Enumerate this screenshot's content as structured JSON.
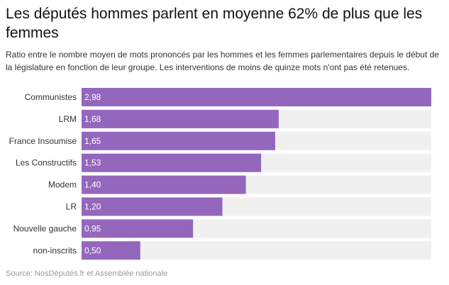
{
  "header": {
    "title": "Les députés hommes parlent en moyenne 62% de plus que les femmes",
    "subtitle": "Ratio entre le nombre moyen de mots prononcés par les hommes et les femmes parlementaires depuis le début de la législature en fonction de leur groupe. Les interventions de moins de quinze mots n'ont pas été retenues."
  },
  "footer": {
    "source": "Source: NosDéputés.fr et Assemblée nationale"
  },
  "colors": {
    "bar": "#9467bd",
    "track": "#f0f0f0",
    "value_text": "#ffffff",
    "category_text": "#333333"
  },
  "chart_data": {
    "type": "bar",
    "orientation": "horizontal",
    "title": "Les députés hommes parlent en moyenne 62% de plus que les femmes",
    "xlabel": "",
    "ylabel": "",
    "xlim": [
      0,
      2.98
    ],
    "grid": false,
    "legend": "none",
    "categories": [
      "Communistes",
      "LRM",
      "France Insoumise",
      "Les Constructifs",
      "Modem",
      "LR",
      "Nouvelle gauche",
      "non-inscrits"
    ],
    "values": [
      2.98,
      1.68,
      1.65,
      1.53,
      1.4,
      1.2,
      0.95,
      0.5
    ],
    "value_labels": [
      "2,98",
      "1,68",
      "1,65",
      "1,53",
      "1,40",
      "1,20",
      "0,95",
      "0,50"
    ]
  }
}
